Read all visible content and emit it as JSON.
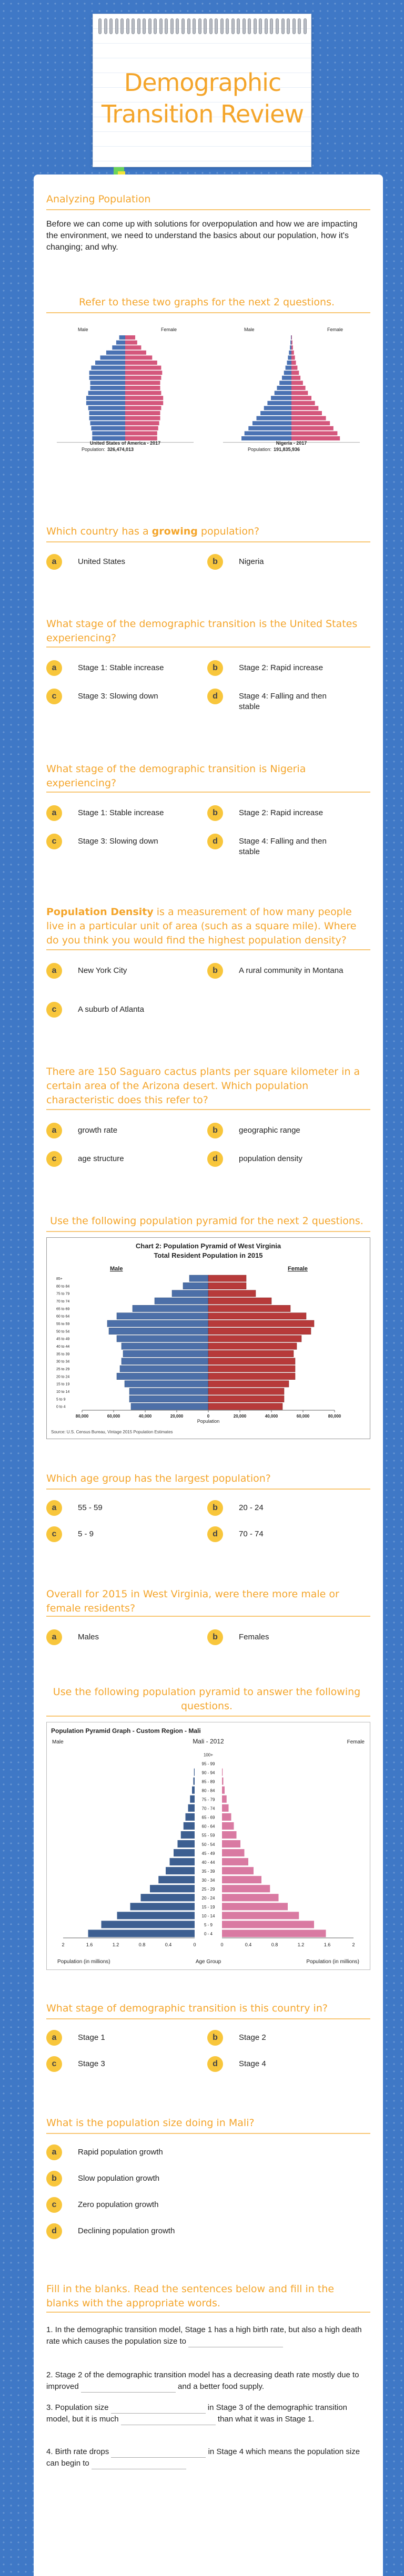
{
  "header": {
    "title": "Demographic Transition Review"
  },
  "intro": {
    "heading": "Analyzing Population",
    "text": "Before we can come up with solutions for overpopulation and how we are impacting the environment, we need to understand the basics about our population, how it's changing; and why."
  },
  "graphs1": {
    "heading": "Refer to these two graphs for the next 2 questions.",
    "usa": {
      "male": "Male",
      "female": "Female",
      "country": "United States of America - 2017",
      "population_label": "Population:",
      "population": "326,474,013"
    },
    "nigeria": {
      "male": "Male",
      "female": "Female",
      "country": "Nigeria - 2017",
      "population_label": "Population:",
      "population": "191,835,936"
    }
  },
  "q1": {
    "pre": "Which country has a ",
    "emph": "growing",
    "post": " population?",
    "options": [
      {
        "letter": "a",
        "label": "United States"
      },
      {
        "letter": "b",
        "label": "Nigeria"
      }
    ]
  },
  "q2": {
    "text": "What stage of the demographic transition is the United States experiencing?",
    "options": [
      {
        "letter": "a",
        "label": "Stage 1: Stable increase"
      },
      {
        "letter": "b",
        "label": "Stage 2: Rapid increase"
      },
      {
        "letter": "c",
        "label": "Stage 3: Slowing down"
      },
      {
        "letter": "d",
        "label": "Stage 4: Falling and then stable"
      }
    ]
  },
  "q3": {
    "text": "What stage of the demographic transition is Nigeria experiencing?",
    "options": [
      {
        "letter": "a",
        "label": "Stage 1: Stable increase"
      },
      {
        "letter": "b",
        "label": "Stage 2: Rapid increase"
      },
      {
        "letter": "c",
        "label": "Stage 3: Slowing down"
      },
      {
        "letter": "d",
        "label": "Stage 4: Falling and then stable"
      }
    ]
  },
  "q4": {
    "emph": "Population Density",
    "text": " is a measurement of how many people live in a particular unit of area (such as a square mile). Where do you think you would find the highest population density?",
    "options": [
      {
        "letter": "a",
        "label": "New York City"
      },
      {
        "letter": "b",
        "label": "A rural community in Montana"
      },
      {
        "letter": "c",
        "label": "A suburb of Atlanta"
      }
    ]
  },
  "q5": {
    "text": "There are 150 Saguaro cactus plants per square kilometer in a certain area of the Arizona desert. Which population characteristic does this refer to?",
    "options": [
      {
        "letter": "a",
        "label": "growth rate"
      },
      {
        "letter": "b",
        "label": "geographic range"
      },
      {
        "letter": "c",
        "label": "age structure"
      },
      {
        "letter": "d",
        "label": "population density"
      }
    ]
  },
  "graph2": {
    "heading": "Use the following population pyramid for the next 2 questions.",
    "title1": "Chart 2: Population Pyramid of West Virginia",
    "title2": "Total Resident Population in 2015",
    "male": "Male",
    "female": "Female",
    "xaxis_title": "Population",
    "source": "Source: U.S. Census Bureau, Vintage 2015 Population Estimates",
    "age_groups": [
      "85+",
      "80 to 84",
      "75 to 79",
      "70 to 74",
      "65 to 69",
      "60 to 64",
      "55 to 59",
      "50 to 54",
      "45 to 49",
      "40 to 44",
      "35 to 39",
      "30 to 34",
      "25 to 29",
      "20 to 24",
      "15 to 19",
      "10 to 14",
      "5 to 9",
      "0 to 4"
    ],
    "x_ticks": [
      "80,000",
      "60,000",
      "40,000",
      "20,000",
      "0",
      "20,000",
      "40,000",
      "60,000",
      "80,000"
    ],
    "male_values": [
      12000,
      16000,
      23000,
      34000,
      48000,
      58000,
      64000,
      63000,
      58000,
      55000,
      54000,
      55000,
      56000,
      58000,
      53000,
      50000,
      50000,
      49000
    ],
    "female_values": [
      24000,
      24000,
      30000,
      40000,
      52000,
      62000,
      67000,
      65000,
      59000,
      56000,
      54000,
      55000,
      55000,
      55000,
      51000,
      48000,
      48000,
      47000
    ]
  },
  "q6": {
    "text": "Which age group has the largest population?",
    "options": [
      {
        "letter": "a",
        "label": "55 - 59"
      },
      {
        "letter": "b",
        "label": "20 - 24"
      },
      {
        "letter": "c",
        "label": "5 - 9"
      },
      {
        "letter": "d",
        "label": "70 - 74"
      }
    ]
  },
  "q7": {
    "text": "Overall for 2015 in West Virginia, were there more male or female residents?",
    "options": [
      {
        "letter": "a",
        "label": "Males"
      },
      {
        "letter": "b",
        "label": "Females"
      }
    ]
  },
  "graph3": {
    "heading": "Use the following population pyramid to answer the following questions.",
    "panel_title": "Population Pyramid Graph - Custom Region - Mali",
    "male": "Male",
    "female": "Female",
    "country_year": "Mali - 2012",
    "age_groups": [
      "100+",
      "95 - 99",
      "90 - 94",
      "85 - 89",
      "80 - 84",
      "75 - 79",
      "70 - 74",
      "65 - 69",
      "60 - 64",
      "55 - 59",
      "50 - 54",
      "45 - 49",
      "40 - 44",
      "35 - 39",
      "30 - 34",
      "25 - 29",
      "20 - 24",
      "15 - 19",
      "10 - 14",
      "5 - 9",
      "0 - 4"
    ],
    "male_values": [
      0.0,
      0.0,
      0.01,
      0.02,
      0.04,
      0.07,
      0.1,
      0.14,
      0.17,
      0.21,
      0.26,
      0.32,
      0.38,
      0.44,
      0.55,
      0.68,
      0.82,
      0.98,
      1.18,
      1.42,
      1.62
    ],
    "female_values": [
      0.0,
      0.0,
      0.01,
      0.02,
      0.04,
      0.07,
      0.1,
      0.14,
      0.18,
      0.22,
      0.28,
      0.34,
      0.4,
      0.48,
      0.6,
      0.73,
      0.86,
      1.0,
      1.17,
      1.4,
      1.58
    ],
    "x_ticks_left": [
      "2",
      "1.6",
      "1.2",
      "0.8",
      "0.4",
      "0"
    ],
    "x_ticks_right": [
      "0",
      "0.4",
      "0.8",
      "1.2",
      "1.6",
      "2"
    ],
    "x_left_label": "Population (in millions)",
    "x_center_label": "Age Group",
    "x_right_label": "Population (in millions)"
  },
  "q8": {
    "text": "What stage of demographic transition is this country in?",
    "options": [
      {
        "letter": "a",
        "label": "Stage 1"
      },
      {
        "letter": "b",
        "label": "Stage 2"
      },
      {
        "letter": "c",
        "label": "Stage 3"
      },
      {
        "letter": "d",
        "label": "Stage 4"
      }
    ]
  },
  "q9": {
    "text": "What is the population size doing in Mali?",
    "options": [
      {
        "letter": "a",
        "label": "Rapid population growth"
      },
      {
        "letter": "b",
        "label": "Slow population growth"
      },
      {
        "letter": "c",
        "label": "Zero population growth"
      },
      {
        "letter": "d",
        "label": "Declining population growth"
      }
    ]
  },
  "fill": {
    "heading": "Fill in the blanks. Read the sentences below and fill in the blanks with the appropriate words.",
    "s1": "1. In the demographic transition model, Stage 1 has a high birth rate, but also a high death rate which causes the population size to",
    "s2a": "2. Stage 2 of the demographic transition model has a decreasing death rate mostly due to improved",
    "s2b": "and a better food supply.",
    "s3a": "3. Population size",
    "s3b": "in Stage 3 of the demographic transition model, but it is much",
    "s3c": "than what it was in Stage 1.",
    "s4a": "4. Birth rate drops",
    "s4b": "in Stage 4 which means the population size can begin to"
  }
}
